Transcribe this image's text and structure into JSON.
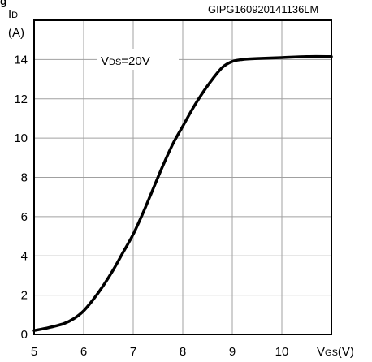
{
  "chart_data": {
    "type": "line",
    "partial_title": "g",
    "figure_code": "GIPG160920141136LM",
    "ylabel": {
      "main": "I",
      "sub": "D",
      "unit": "(A)"
    },
    "xlabel": {
      "main": "V",
      "sub": "GS",
      "unit": "(V)"
    },
    "annotation": {
      "main": "V",
      "sub": "DS",
      "rest": "=20V"
    },
    "xlim": [
      5,
      11
    ],
    "ylim": [
      0,
      16
    ],
    "x_ticks": [
      "5",
      "6",
      "7",
      "8",
      "9",
      "10"
    ],
    "y_ticks": [
      "0",
      "2",
      "4",
      "6",
      "8",
      "10",
      "12",
      "14"
    ],
    "grid": true,
    "series": [
      {
        "x": [
          5.0,
          5.3,
          5.6,
          5.8,
          6.0,
          6.2,
          6.4,
          6.6,
          6.8,
          7.0,
          7.2,
          7.4,
          7.6,
          7.8,
          8.0,
          8.2,
          8.4,
          8.6,
          8.8,
          9.0,
          9.2,
          9.5,
          10.0,
          10.5,
          11.0
        ],
        "y": [
          0.2,
          0.35,
          0.55,
          0.8,
          1.2,
          1.8,
          2.5,
          3.3,
          4.2,
          5.1,
          6.2,
          7.4,
          8.6,
          9.7,
          10.6,
          11.5,
          12.3,
          13.0,
          13.6,
          13.9,
          14.0,
          14.05,
          14.1,
          14.15,
          14.15
        ]
      }
    ],
    "colors": {
      "curve": "#000000",
      "grid": "#a0a0a0",
      "frame": "#000000"
    }
  }
}
